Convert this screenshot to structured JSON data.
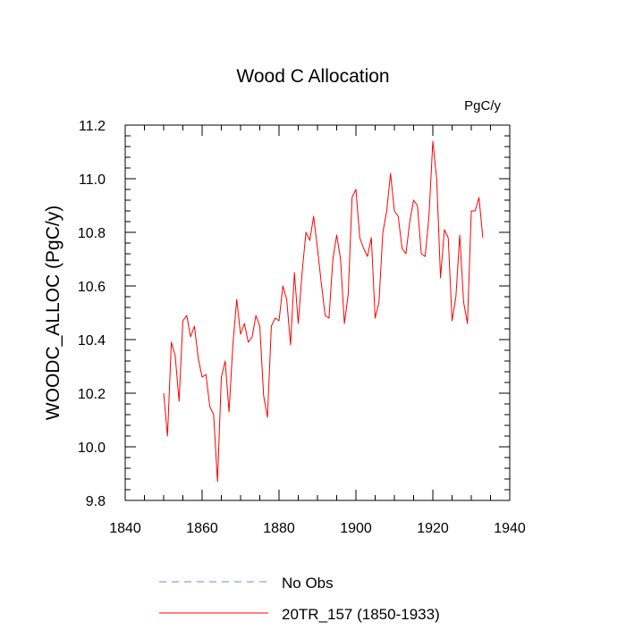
{
  "chart_data": {
    "type": "line",
    "title": "Wood C Allocation",
    "units_label": "PgC/y",
    "xlabel": "",
    "ylabel": "WOODC_ALLOC  (PgC/y)",
    "xlim": [
      1840,
      1940
    ],
    "ylim": [
      9.8,
      11.2
    ],
    "x_ticks": [
      1840,
      1860,
      1880,
      1900,
      1920,
      1940
    ],
    "x_tick_labels": [
      "1840",
      "1860",
      "1880",
      "1900",
      "1920",
      "1940"
    ],
    "y_ticks": [
      9.8,
      10.0,
      10.2,
      10.4,
      10.6,
      10.8,
      11.0,
      11.2
    ],
    "y_tick_labels": [
      "9.8",
      "10.0",
      "10.2",
      "10.4",
      "10.6",
      "10.8",
      "11.0",
      "11.2"
    ],
    "grid": false,
    "legend": {
      "placement": "bottom",
      "entries": [
        {
          "label": "No Obs",
          "color": "#7b7bf5",
          "style": "dashed"
        },
        {
          "label": "20TR_157 (1850-1933)",
          "color": "#ff0000",
          "style": "solid"
        }
      ]
    },
    "series": [
      {
        "name": "20TR_157 (1850-1933)",
        "color": "#ff0000",
        "x": [
          1850,
          1851,
          1852,
          1853,
          1854,
          1855,
          1856,
          1857,
          1858,
          1859,
          1860,
          1861,
          1862,
          1863,
          1864,
          1865,
          1866,
          1867,
          1868,
          1869,
          1870,
          1871,
          1872,
          1873,
          1874,
          1875,
          1876,
          1877,
          1878,
          1879,
          1880,
          1881,
          1882,
          1883,
          1884,
          1885,
          1886,
          1887,
          1888,
          1889,
          1890,
          1891,
          1892,
          1893,
          1894,
          1895,
          1896,
          1897,
          1898,
          1899,
          1900,
          1901,
          1902,
          1903,
          1904,
          1905,
          1906,
          1907,
          1908,
          1909,
          1910,
          1911,
          1912,
          1913,
          1914,
          1915,
          1916,
          1917,
          1918,
          1919,
          1920,
          1921,
          1922,
          1923,
          1924,
          1925,
          1926,
          1927,
          1928,
          1929,
          1930,
          1931,
          1932,
          1933
        ],
        "values": [
          10.2,
          10.04,
          10.39,
          10.34,
          10.17,
          10.47,
          10.49,
          10.41,
          10.45,
          10.33,
          10.26,
          10.27,
          10.15,
          10.12,
          9.87,
          10.26,
          10.32,
          10.13,
          10.38,
          10.55,
          10.42,
          10.46,
          10.39,
          10.41,
          10.49,
          10.45,
          10.19,
          10.11,
          10.45,
          10.48,
          10.47,
          10.6,
          10.55,
          10.38,
          10.65,
          10.46,
          10.65,
          10.8,
          10.77,
          10.86,
          10.74,
          10.61,
          10.49,
          10.48,
          10.7,
          10.79,
          10.7,
          10.46,
          10.57,
          10.93,
          10.96,
          10.78,
          10.74,
          10.71,
          10.78,
          10.48,
          10.54,
          10.8,
          10.88,
          11.02,
          10.88,
          10.86,
          10.74,
          10.72,
          10.84,
          10.92,
          10.9,
          10.72,
          10.71,
          10.86,
          11.14,
          11.0,
          10.63,
          10.81,
          10.78,
          10.47,
          10.56,
          10.79,
          10.54,
          10.46,
          10.88,
          10.88,
          10.93,
          10.78
        ]
      }
    ]
  }
}
